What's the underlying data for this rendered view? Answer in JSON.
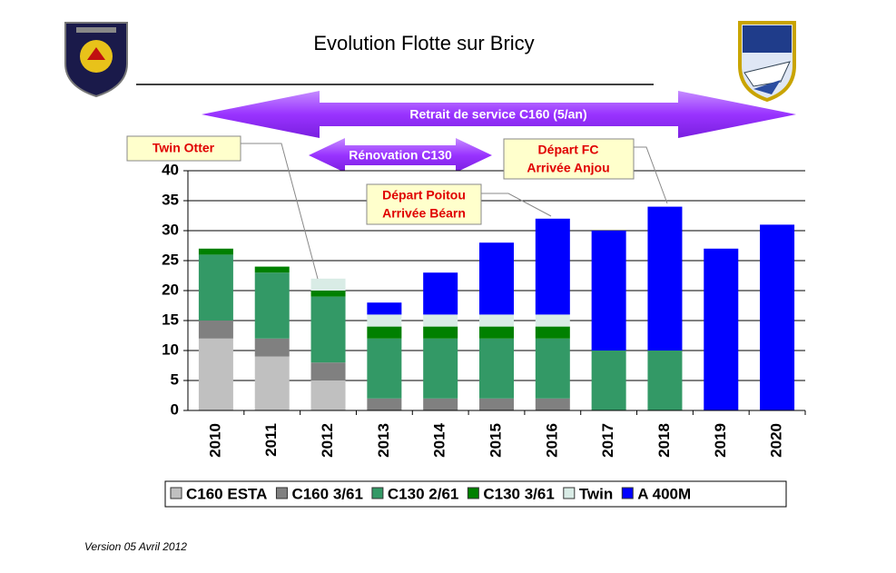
{
  "chart_data": {
    "type": "stacked_bar",
    "title": "Evolution Flotte sur Bricy",
    "categories": [
      "2010",
      "2011",
      "2012",
      "2013",
      "2014",
      "2015",
      "2016",
      "2017",
      "2018",
      "2019",
      "2020"
    ],
    "series": [
      {
        "name": "C160 ESTA",
        "color": "#c0c0c0",
        "values": [
          12,
          9,
          5,
          0,
          0,
          0,
          0,
          0,
          0,
          0,
          0
        ]
      },
      {
        "name": "C160 3/61",
        "color": "#808080",
        "values": [
          3,
          3,
          3,
          2,
          2,
          2,
          2,
          0,
          0,
          0,
          0
        ]
      },
      {
        "name": "C130 2/61",
        "color": "#339966",
        "values": [
          11,
          11,
          11,
          10,
          10,
          10,
          10,
          10,
          10,
          0,
          0
        ]
      },
      {
        "name": "C130 3/61",
        "color": "#008000",
        "values": [
          1,
          1,
          1,
          2,
          2,
          2,
          2,
          0,
          0,
          0,
          0
        ]
      },
      {
        "name": "Twin",
        "color": "#d9ece6",
        "values": [
          0,
          0,
          2,
          2,
          2,
          2,
          2,
          0,
          0,
          0,
          0
        ]
      },
      {
        "name": "A 400M",
        "color": "#0000ff",
        "values": [
          0,
          0,
          0,
          2,
          7,
          12,
          16,
          20,
          24,
          27,
          31
        ]
      }
    ],
    "ylim": [
      0,
      40
    ],
    "yticks": [
      0,
      5,
      10,
      15,
      20,
      25,
      30,
      35,
      40
    ],
    "grid": true,
    "banners": [
      "Retrait de service  C160 (5/an)",
      "Rénovation C130"
    ],
    "callouts": [
      [
        "Twin Otter"
      ],
      [
        "Départ Poitou",
        "Arrivée Béarn"
      ],
      [
        "Départ FC",
        "Arrivée Anjou"
      ]
    ]
  },
  "footer": "Version 05 Avril 2012"
}
